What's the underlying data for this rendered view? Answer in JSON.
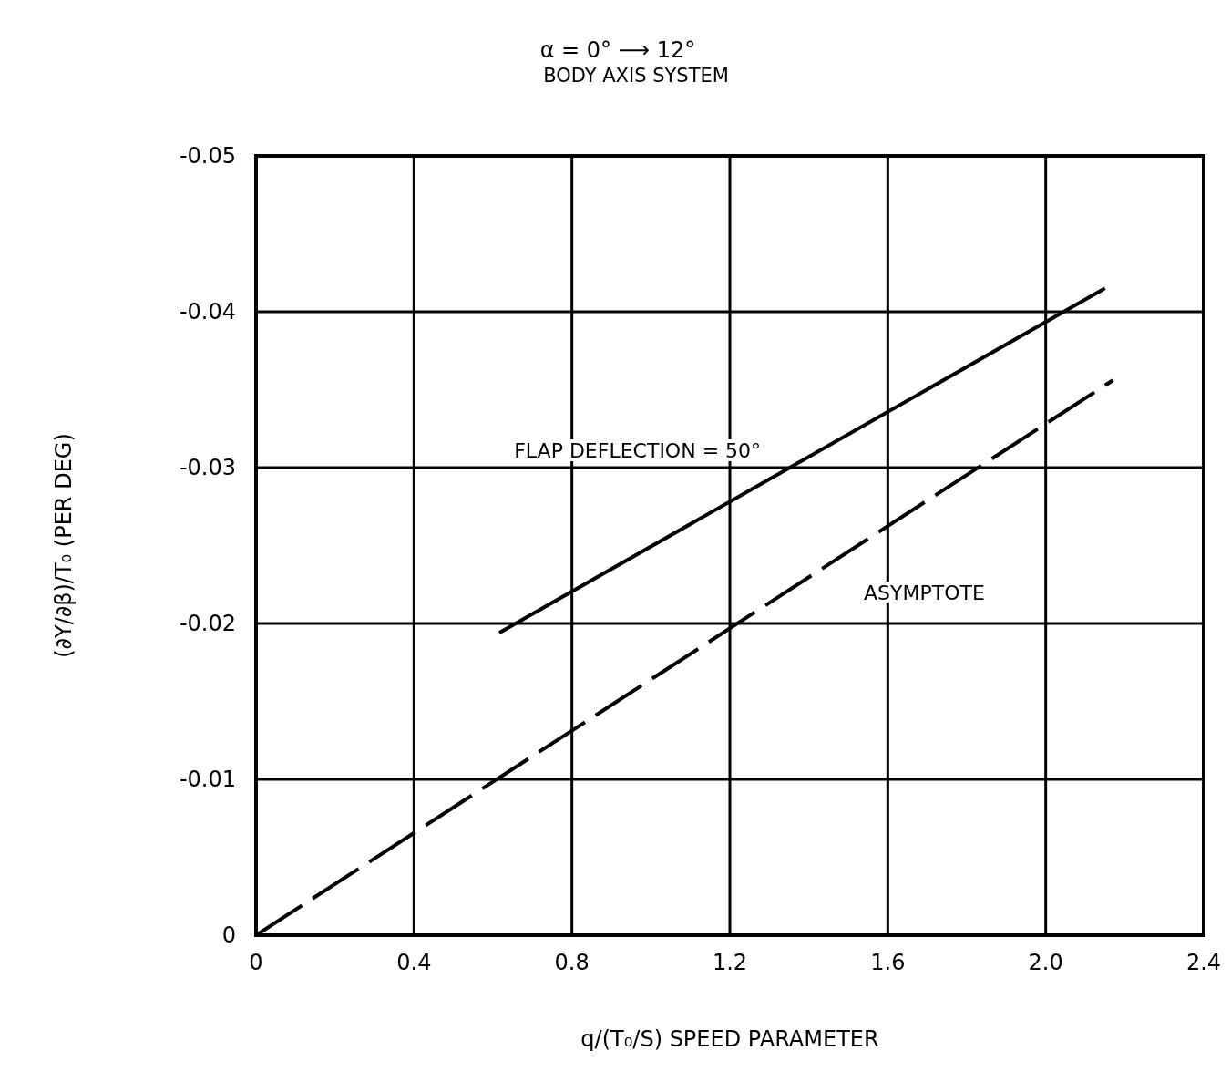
{
  "chart_data": {
    "type": "line",
    "title": "α = 0° ⟶ 12°",
    "subtitle": "BODY AXIS SYSTEM",
    "xlabel": "q/(T₀/S)  SPEED PARAMETER",
    "ylabel": "(∂Y/∂β)/T₀  (PER DEG)",
    "xlim": [
      0,
      2.4
    ],
    "xticks": [
      0,
      0.4,
      0.8,
      1.2,
      1.6,
      {
        "value": 2,
        "label": "2.0"
      },
      2.4
    ],
    "ylim": [
      0,
      -0.05
    ],
    "yticks": [
      0,
      -0.01,
      -0.02,
      -0.03,
      -0.04,
      -0.05
    ],
    "grid": true,
    "marker": "none",
    "series": [
      {
        "name": "FLAP DEFLECTION = 50°",
        "color": "#000000",
        "x": [
          0.616,
          2.15
        ],
        "values": [
          -0.0194,
          -0.0415
        ],
        "line_style": "solid"
      },
      {
        "name": "ASYMPTOTE",
        "color": "#000000",
        "x": [
          0,
          2.17
        ],
        "values": [
          0,
          -0.0356
        ],
        "line_style": "dashed"
      }
    ]
  }
}
